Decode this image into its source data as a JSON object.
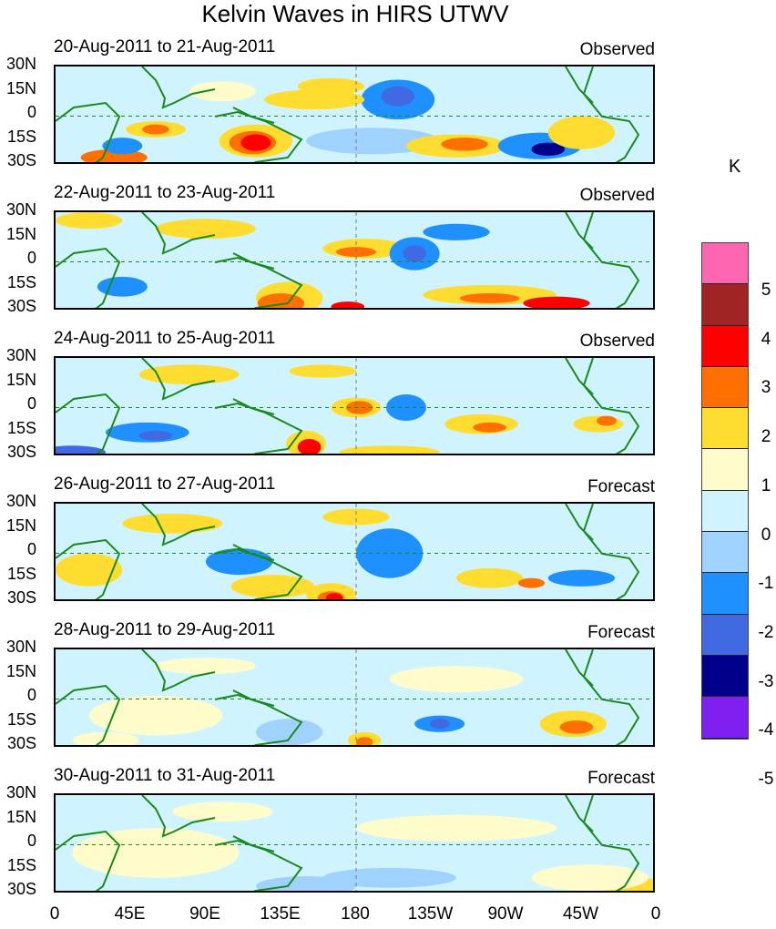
{
  "title": "Kelvin Waves in HIRS UTWV",
  "unit": "K",
  "panels": [
    {
      "dates": "20-Aug-2011 to 21-Aug-2011",
      "tag": "Observed"
    },
    {
      "dates": "22-Aug-2011 to 23-Aug-2011",
      "tag": "Observed"
    },
    {
      "dates": "24-Aug-2011 to 25-Aug-2011",
      "tag": "Observed"
    },
    {
      "dates": "26-Aug-2011 to 27-Aug-2011",
      "tag": "Forecast"
    },
    {
      "dates": "28-Aug-2011 to 29-Aug-2011",
      "tag": "Forecast"
    },
    {
      "dates": "30-Aug-2011 to 31-Aug-2011",
      "tag": "Forecast"
    }
  ],
  "lat_labels": [
    "30N",
    "15N",
    "0",
    "15S",
    "30S"
  ],
  "lon_labels": [
    "0",
    "45E",
    "90E",
    "135E",
    "180",
    "135W",
    "90W",
    "45W",
    "0"
  ],
  "colorbar": {
    "colors": [
      "#ff66b2",
      "#a02424",
      "#ff0000",
      "#ff7000",
      "#ffdc30",
      "#fffccc",
      "#d0f4ff",
      "#a0d2ff",
      "#1e90ff",
      "#4169e1",
      "#00008b",
      "#8020f0"
    ],
    "labels": [
      "5",
      "4",
      "3",
      "2",
      "1",
      "0",
      "-1",
      "-2",
      "-3",
      "-4",
      "-5"
    ]
  },
  "coast_color": "#1a8a1a"
}
